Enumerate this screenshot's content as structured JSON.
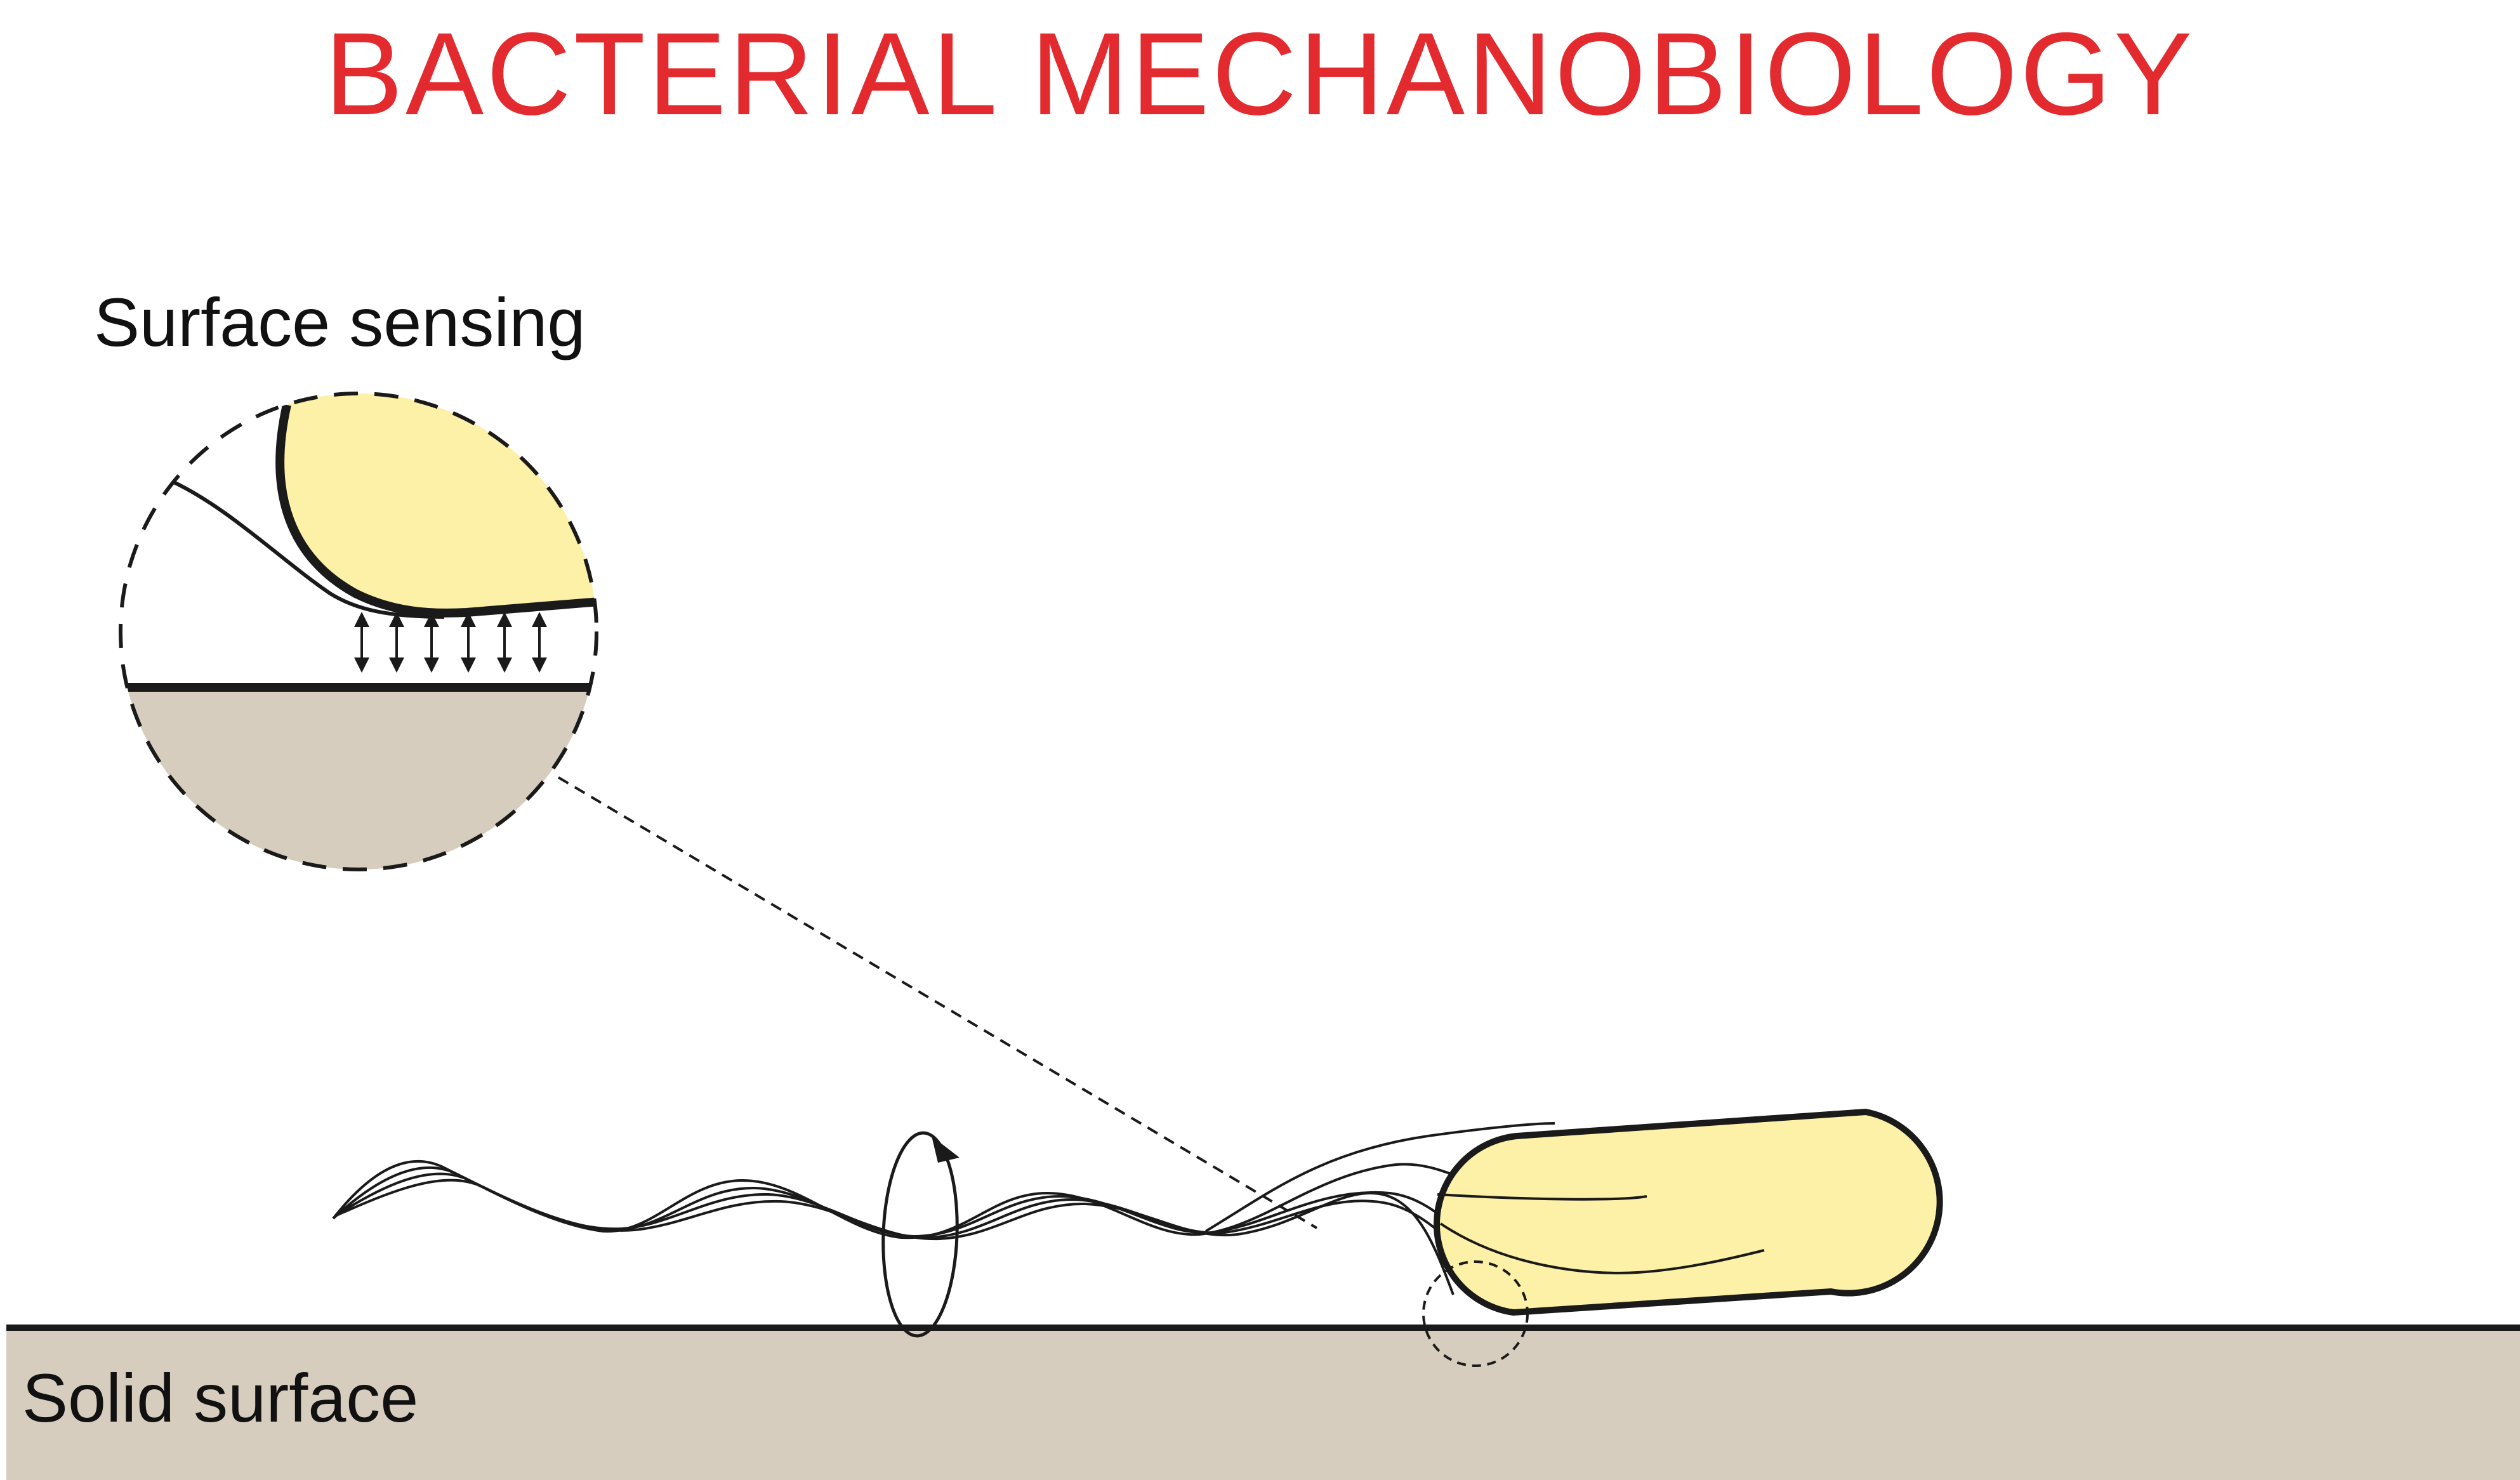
{
  "title": "BACTERIAL MECHANOBIOLOGY",
  "inset_label": "Surface sensing",
  "surface_label": "Solid surface",
  "colors": {
    "title": "#e32b2f",
    "cell_fill": "#fdf0a7",
    "surface_fill": "#d6cdbe",
    "stroke": "#1a1a1a"
  },
  "icons": {
    "rotation_arrow": "circular-rotation-arrow",
    "force_arrows": "double-headed-arrow"
  },
  "force_arrow_count": 6
}
